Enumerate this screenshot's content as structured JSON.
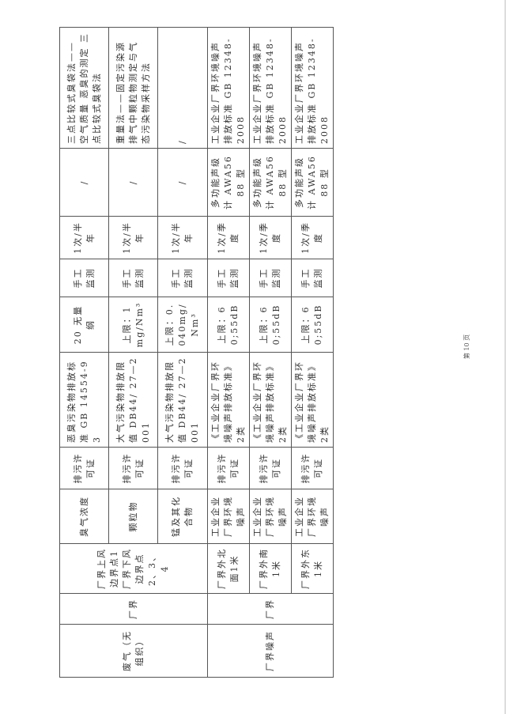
{
  "rows": [
    {
      "indicator": "臭气浓度",
      "basis": "排污许可证",
      "standard": "恶臭污染物排放标准 GB 14554-93",
      "limit": "20 无量纲",
      "method": "手工监测",
      "frequency": "1次/半年",
      "instrument": "/",
      "analysis": "三点比较式臭袋法——空气质量 恶臭的测定 三点比较式臭袋法"
    },
    {
      "indicator": "颗粒物",
      "basis": "排污许可证",
      "standard": "大气污染物排放限值 DB44/ 27—2001",
      "limit": "上限：1mg/Nm³",
      "method": "手工监测",
      "frequency": "1次/半年",
      "instrument": "/",
      "analysis": "重量法——固定污染源排气中颗粒物测定与气态污染物采样方法"
    },
    {
      "indicator": "锰及其化合物",
      "basis": "排污许可证",
      "standard": "大气污染物排放限值 DB44/ 27—2001",
      "limit": "上限：0.040mg/Nm³",
      "method": "手工监测",
      "frequency": "1次/半年",
      "instrument": "/",
      "analysis": "/"
    },
    {
      "point": "厂界外北面1米",
      "indicator": "工业企业厂界环境噪声",
      "basis": "排污许可证",
      "standard": "《工业企业厂界环境噪声排放标准》2类",
      "limit": "上限：60;55dB",
      "method": "手工监测",
      "frequency": "1次/季度",
      "instrument": "多功能声级计 AWA5688 型",
      "analysis": "工业企业厂界环境噪声排放标准 GB 12348-2008"
    },
    {
      "point": "厂界外南1米",
      "indicator": "工业企业厂界环境噪声",
      "basis": "排污许可证",
      "standard": "《工业企业厂界环境噪声排放标准》2类",
      "limit": "上限：60;55dB",
      "method": "手工监测",
      "frequency": "1次/季度",
      "instrument": "多功能声级计 AWA5688 型",
      "analysis": "工业企业厂界环境噪声排放标准 GB 12348-2008"
    },
    {
      "point": "厂界外东1米",
      "indicator": "工业企业厂界环境噪声",
      "basis": "排污许可证",
      "standard": "《工业企业厂界环境噪声排放标准》2类",
      "limit": "上限：60;55dB",
      "method": "手工监测",
      "frequency": "1次/季度",
      "instrument": "多功能声级计 AWA5688 型",
      "analysis": "工业企业厂界环境噪声排放标准 GB 12348-2008"
    }
  ],
  "groups": {
    "gas": {
      "category": "废气（无组织）",
      "location": "厂界",
      "point": "厂界上风边界点1 厂界下风边界点2、3、4"
    },
    "noise": {
      "category": "厂界噪声",
      "location": "厂界"
    }
  },
  "footer": {
    "page_number": "第 10 页"
  }
}
